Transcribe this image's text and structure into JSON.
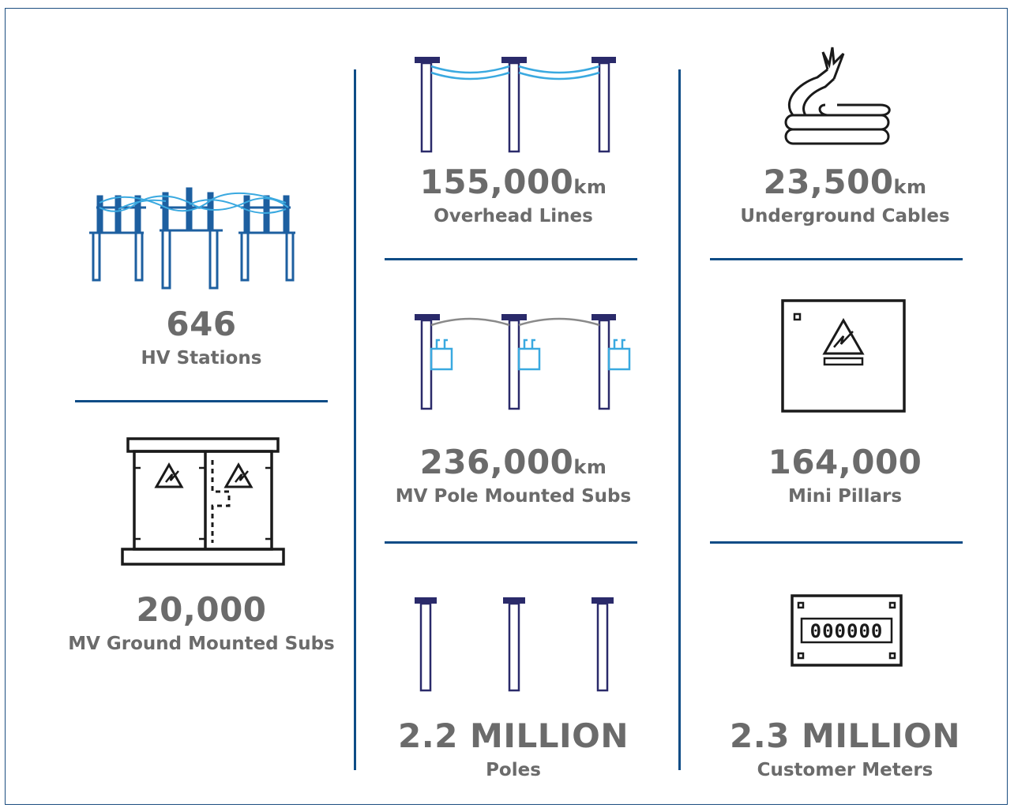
{
  "stats": {
    "hv_stations": {
      "value": "646",
      "unit": "",
      "label": "HV Stations",
      "icon": "hv-station-icon"
    },
    "mv_ground": {
      "value": "20,000",
      "unit": "",
      "label": "MV Ground Mounted Subs",
      "icon": "ground-substation-icon"
    },
    "overhead_lines": {
      "value": "155,000",
      "unit": "km",
      "label": "Overhead Lines",
      "icon": "overhead-lines-icon"
    },
    "mv_pole": {
      "value": "236,000",
      "unit": "km",
      "label": "MV Pole Mounted Subs",
      "icon": "pole-mounted-sub-icon"
    },
    "poles": {
      "value": "2.2 MILLION",
      "unit": "",
      "label": "Poles",
      "icon": "poles-icon"
    },
    "underground_cables": {
      "value": "23,500",
      "unit": "km",
      "label": "Underground Cables",
      "icon": "cable-icon"
    },
    "mini_pillars": {
      "value": "164,000",
      "unit": "",
      "label": "Mini Pillars",
      "icon": "mini-pillar-icon"
    },
    "customer_meters": {
      "value": "2.3 MILLION",
      "unit": "",
      "label": "Customer Meters",
      "icon": "meter-icon"
    }
  },
  "meter_display": "000000",
  "colors": {
    "divider": "#0e4c86",
    "text": "#6b6b6b",
    "pole": "#2a2a6a",
    "wire": "#3aa9e0",
    "hv_blue": "#1d5fa0",
    "grey_wire": "#8a8a8a"
  }
}
